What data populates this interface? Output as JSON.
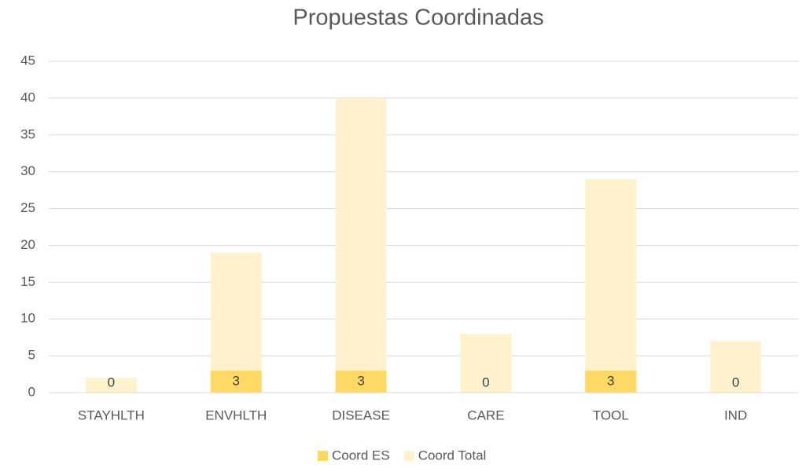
{
  "chart_data": {
    "type": "bar",
    "title": "Propuestas Coordinadas",
    "categories": [
      "STAYHLTH",
      "ENVHLTH",
      "DISEASE",
      "CARE",
      "TOOL",
      "IND"
    ],
    "series": [
      {
        "name": "Coord ES",
        "color": "#ffd966",
        "values": [
          0,
          3,
          3,
          0,
          3,
          0
        ]
      },
      {
        "name": "Coord Total",
        "color": "#fff2cc",
        "values": [
          2,
          19,
          40,
          8,
          29,
          7
        ]
      }
    ],
    "data_labels_series": 0,
    "ylim": [
      0,
      45
    ],
    "yticks": [
      0,
      5,
      10,
      15,
      20,
      25,
      30,
      35,
      40,
      45
    ],
    "grid": true,
    "legend": "bottom"
  }
}
